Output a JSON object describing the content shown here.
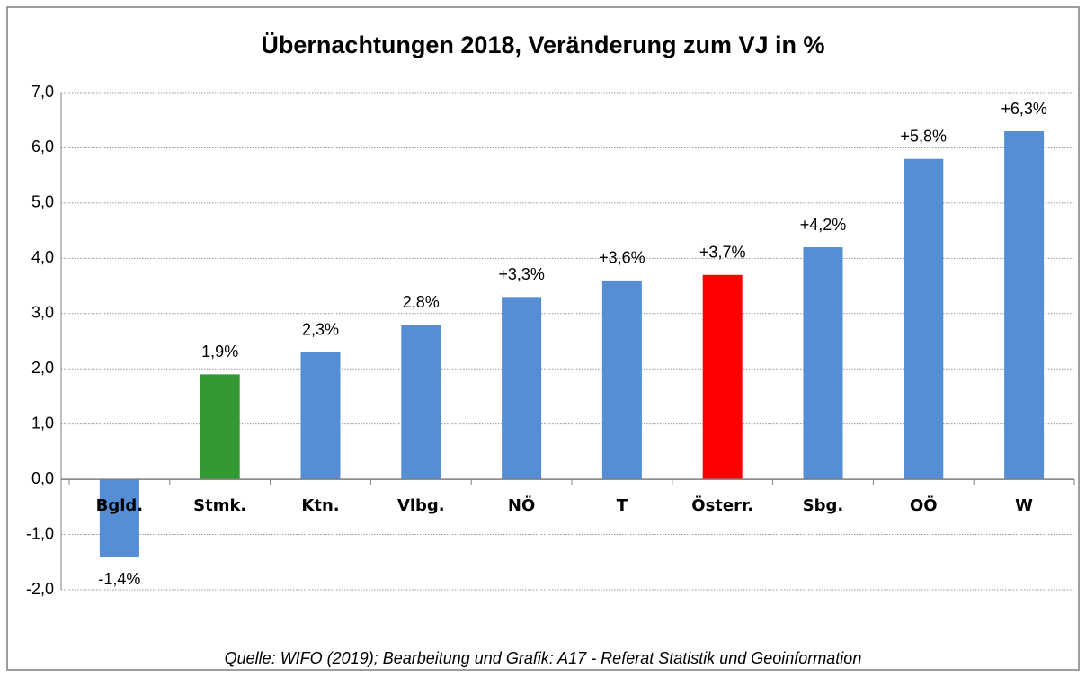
{
  "chart_data": {
    "type": "bar",
    "title": "Übernachtungen 2018, Veränderung zum VJ in %",
    "categories": [
      "Bgld.",
      "Stmk.",
      "Ktn.",
      "Vlbg.",
      "NÖ",
      "T",
      "Österr.",
      "Sbg.",
      "OÖ",
      "W"
    ],
    "values": [
      -1.4,
      1.9,
      2.3,
      2.8,
      3.3,
      3.6,
      3.7,
      4.2,
      5.8,
      6.3
    ],
    "value_labels": [
      "-1,4%",
      "1,9%",
      "2,3%",
      "2,8%",
      "+3,3%",
      "+3,6%",
      "+3,7%",
      "+4,2%",
      "+5,8%",
      "+6,3%"
    ],
    "colors": [
      "#558ed5",
      "#339933",
      "#558ed5",
      "#558ed5",
      "#558ed5",
      "#558ed5",
      "#ff0000",
      "#558ed5",
      "#558ed5",
      "#558ed5"
    ],
    "ylim": [
      -2,
      7
    ],
    "yticks": [
      {
        "value": -2,
        "label": "-2,0"
      },
      {
        "value": -1,
        "label": "-1,0"
      },
      {
        "value": 0,
        "label": "0,0"
      },
      {
        "value": 1,
        "label": "1,0"
      },
      {
        "value": 2,
        "label": "2,0"
      },
      {
        "value": 3,
        "label": "3,0"
      },
      {
        "value": 4,
        "label": "4,0"
      },
      {
        "value": 5,
        "label": "5,0"
      },
      {
        "value": 6,
        "label": "6,0"
      },
      {
        "value": 7,
        "label": "7,0"
      }
    ],
    "grid": true,
    "annotation": "Quelle: WIFO (2019); Bearbeitung und Grafik: A17 - Referat Statistik und Geoinformation"
  }
}
